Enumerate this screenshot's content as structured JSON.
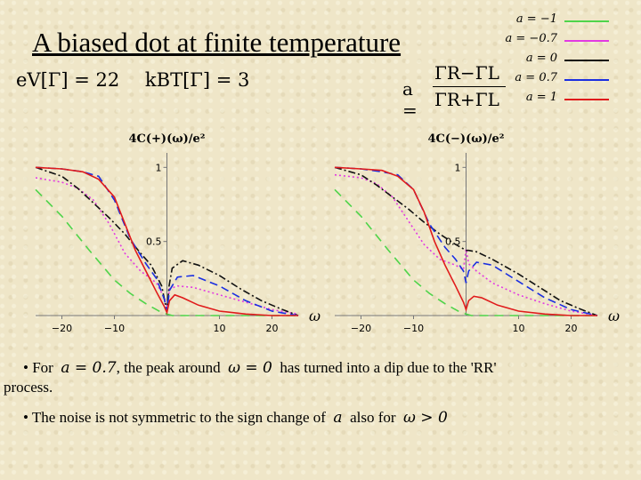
{
  "title": "A biased dot at finite temperature",
  "params": {
    "eV": "eV[Γ] = 22",
    "kT": "kBT[Γ] = 3"
  },
  "asym": {
    "lhs": "a =",
    "num": "ΓR−ΓL",
    "den": "ΓR+ΓL"
  },
  "legend": [
    {
      "label": "a = −1",
      "color": "#4fd44a",
      "dash": ""
    },
    {
      "label": "a = −0.7",
      "color": "#e23ae2",
      "dash": ""
    },
    {
      "label": "a = 0",
      "color": "#111111",
      "dash": ""
    },
    {
      "label": "a = 0.7",
      "color": "#1b2fe0",
      "dash": ""
    },
    {
      "label": "a = 1",
      "color": "#e01b1b",
      "dash": ""
    }
  ],
  "bullets": {
    "b1_prefix": "• For",
    "b1_math1": "a = 0.7",
    "b1_mid": ", the peak around",
    "b1_math2": "ω = 0",
    "b1_suffix": "has turned into a dip due to the 'RR'",
    "b1_cont": "process.",
    "b2_prefix": "• The noise is not symmetric to the sign change of",
    "b2_math1": "a",
    "b2_mid": "also for",
    "b2_math2": "ω > 0"
  },
  "chart_data": [
    {
      "type": "line",
      "title": "",
      "ylabel": "4C(+)(ω)/e²",
      "xlabel": "ω",
      "xlim": [
        -25,
        25
      ],
      "ylim": [
        0,
        1.05
      ],
      "xticks": [
        -20,
        -10,
        10,
        20
      ],
      "yticks": [
        0.5,
        1
      ],
      "series": [
        {
          "name": "a = −1",
          "color": "#4fd44a",
          "dash": "10,7",
          "x": [
            -25,
            -20,
            -15,
            -10,
            -7,
            -4,
            -2,
            -1,
            0,
            1,
            3,
            6,
            10,
            15,
            20,
            25
          ],
          "y": [
            0.85,
            0.67,
            0.45,
            0.24,
            0.15,
            0.08,
            0.04,
            0.02,
            0.01,
            0.0,
            0.0,
            0.0,
            0.0,
            0.0,
            0.0,
            0.0
          ]
        },
        {
          "name": "a = −0.7",
          "color": "#e23ae2",
          "dash": "2,3",
          "x": [
            -25,
            -20,
            -17,
            -14,
            -11,
            -8,
            -5,
            -2,
            -0.5,
            0,
            0.5,
            2,
            5,
            10,
            15,
            20,
            25
          ],
          "y": [
            0.93,
            0.9,
            0.86,
            0.78,
            0.62,
            0.42,
            0.3,
            0.22,
            0.12,
            0.04,
            0.18,
            0.2,
            0.19,
            0.14,
            0.09,
            0.04,
            0.01
          ]
        },
        {
          "name": "a = 0",
          "color": "#111111",
          "dash": "8,3,2,3",
          "x": [
            -25,
            -20,
            -17,
            -14,
            -11,
            -8,
            -5,
            -3,
            -1,
            -0.3,
            0,
            0.4,
            1,
            3,
            6,
            10,
            14,
            18,
            22,
            25
          ],
          "y": [
            1.0,
            0.94,
            0.86,
            0.76,
            0.66,
            0.55,
            0.42,
            0.34,
            0.2,
            0.08,
            0.03,
            0.2,
            0.32,
            0.37,
            0.34,
            0.27,
            0.18,
            0.1,
            0.04,
            0.0
          ]
        },
        {
          "name": "a = 0.7",
          "color": "#1b2fe0",
          "dash": "9,5",
          "x": [
            -25,
            -20,
            -16,
            -13,
            -10,
            -7,
            -4,
            -2,
            -0.5,
            0,
            0.5,
            2,
            5,
            10,
            15,
            20,
            25
          ],
          "y": [
            1.0,
            0.99,
            0.97,
            0.94,
            0.78,
            0.52,
            0.35,
            0.25,
            0.11,
            0.03,
            0.17,
            0.26,
            0.27,
            0.2,
            0.1,
            0.03,
            0.0
          ]
        },
        {
          "name": "a = 1",
          "color": "#e01b1b",
          "dash": "",
          "x": [
            -25,
            -20,
            -16,
            -13,
            -10,
            -8,
            -6,
            -4,
            -2,
            -0.5,
            0,
            0.5,
            1.5,
            3,
            6,
            10,
            15,
            20,
            25
          ],
          "y": [
            1.0,
            0.99,
            0.97,
            0.92,
            0.8,
            0.62,
            0.44,
            0.3,
            0.16,
            0.06,
            0.02,
            0.1,
            0.14,
            0.12,
            0.07,
            0.03,
            0.01,
            0.0,
            0.0
          ]
        }
      ]
    },
    {
      "type": "line",
      "title": "",
      "ylabel": "4C(−)(ω)/e²",
      "xlabel": "ω",
      "xlim": [
        -25,
        25
      ],
      "ylim": [
        0,
        1.05
      ],
      "xticks": [
        -20,
        -10,
        10,
        20
      ],
      "yticks": [
        0.5,
        1
      ],
      "series": [
        {
          "name": "a = −1",
          "color": "#4fd44a",
          "dash": "10,7",
          "x": [
            -25,
            -20,
            -15,
            -10,
            -7,
            -4,
            -2,
            -1,
            0,
            1,
            3,
            6,
            10,
            15,
            20,
            25
          ],
          "y": [
            0.85,
            0.67,
            0.45,
            0.24,
            0.15,
            0.08,
            0.04,
            0.02,
            0.01,
            0.0,
            0.0,
            0.0,
            0.0,
            0.0,
            0.0,
            0.0
          ]
        },
        {
          "name": "a = −0.7",
          "color": "#e23ae2",
          "dash": "2,3",
          "x": [
            -25,
            -20,
            -17,
            -14,
            -11,
            -8,
            -5,
            -2,
            -0.5,
            0,
            0.5,
            2,
            5,
            10,
            15,
            20,
            25
          ],
          "y": [
            0.95,
            0.93,
            0.89,
            0.8,
            0.64,
            0.48,
            0.38,
            0.34,
            0.31,
            0.45,
            0.35,
            0.3,
            0.22,
            0.14,
            0.08,
            0.03,
            0.0
          ]
        },
        {
          "name": "a = 0",
          "color": "#111111",
          "dash": "8,3,2,3",
          "x": [
            -25,
            -20,
            -17,
            -14,
            -11,
            -8,
            -5,
            -2,
            -0.5,
            0,
            0.5,
            2,
            5,
            10,
            14,
            18,
            22,
            25
          ],
          "y": [
            1.0,
            0.95,
            0.88,
            0.8,
            0.72,
            0.63,
            0.55,
            0.48,
            0.45,
            0.44,
            0.44,
            0.43,
            0.38,
            0.28,
            0.19,
            0.1,
            0.04,
            0.0
          ]
        },
        {
          "name": "a = 0.7",
          "color": "#1b2fe0",
          "dash": "9,5",
          "x": [
            -25,
            -20,
            -16,
            -13,
            -10,
            -7,
            -4,
            -2,
            -0.5,
            0,
            0.5,
            2,
            5,
            10,
            15,
            20,
            25
          ],
          "y": [
            1.0,
            0.99,
            0.97,
            0.95,
            0.85,
            0.62,
            0.46,
            0.38,
            0.3,
            0.22,
            0.3,
            0.36,
            0.34,
            0.23,
            0.12,
            0.04,
            0.0
          ]
        },
        {
          "name": "a = 1",
          "color": "#e01b1b",
          "dash": "",
          "x": [
            -25,
            -20,
            -16,
            -13,
            -10,
            -8,
            -6,
            -4,
            -2,
            -0.5,
            0,
            0.5,
            1.5,
            3,
            6,
            10,
            15,
            20,
            25
          ],
          "y": [
            1.0,
            0.99,
            0.98,
            0.94,
            0.85,
            0.7,
            0.5,
            0.34,
            0.2,
            0.09,
            0.04,
            0.1,
            0.13,
            0.12,
            0.07,
            0.03,
            0.01,
            0.0,
            0.0
          ]
        }
      ]
    }
  ]
}
